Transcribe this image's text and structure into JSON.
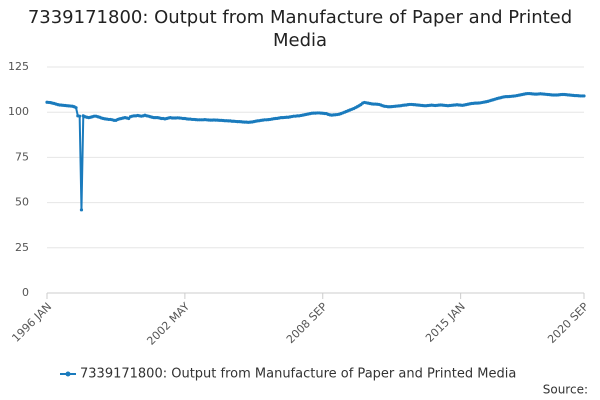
{
  "chart_data": {
    "type": "line",
    "title": "7339171800: Output from Manufacture of Paper and Printed Media",
    "source": "Source:",
    "categories": [
      "1996 JAN",
      null,
      null,
      null,
      null,
      null,
      null,
      null,
      null,
      null,
      null,
      null,
      null,
      null,
      null,
      null,
      null,
      null,
      null,
      null,
      null,
      null,
      null,
      null,
      null,
      null,
      null,
      null,
      null,
      null,
      null,
      null,
      null,
      null,
      null,
      null,
      null,
      null,
      null,
      null,
      null,
      null,
      null,
      null,
      null,
      null,
      null,
      null,
      null,
      null,
      null,
      null,
      null,
      null,
      null,
      null,
      null,
      null,
      null,
      null,
      null,
      null,
      null,
      null,
      null,
      null,
      null,
      null,
      null,
      null,
      null,
      null,
      null,
      null,
      null,
      null,
      "2002 MAY",
      null,
      null,
      null,
      null,
      null,
      null,
      null,
      null,
      null,
      null,
      null,
      null,
      null,
      null,
      null,
      null,
      null,
      null,
      null,
      null,
      null,
      null,
      null,
      null,
      null,
      null,
      null,
      null,
      null,
      null,
      null,
      null,
      null,
      null,
      null,
      null,
      null,
      null,
      null,
      null,
      null,
      null,
      null,
      null,
      null,
      null,
      null,
      null,
      null,
      null,
      null,
      null,
      null,
      null,
      null,
      null,
      null,
      null,
      null,
      null,
      null,
      null,
      null,
      null,
      null,
      null,
      null,
      null,
      null,
      null,
      null,
      null,
      null,
      null,
      null,
      "2008 SEP",
      null,
      null,
      null,
      null,
      null,
      null,
      null,
      null,
      null,
      null,
      null,
      null,
      null,
      null,
      null,
      null,
      null,
      null,
      null,
      null,
      null,
      null,
      null,
      null,
      null,
      null,
      null,
      null,
      null,
      null,
      null,
      null,
      null,
      null,
      null,
      null,
      null,
      null,
      null,
      null,
      null,
      null,
      null,
      null,
      null,
      null,
      null,
      null,
      null,
      null,
      null,
      null,
      null,
      null,
      null,
      null,
      null,
      null,
      null,
      null,
      null,
      null,
      null,
      null,
      null,
      null,
      null,
      null,
      null,
      null,
      null,
      null,
      null,
      null,
      null,
      "2015 JAN",
      null,
      null,
      null,
      null,
      null,
      null,
      null,
      null,
      null,
      null,
      null,
      null,
      null,
      null,
      null,
      null,
      null,
      null,
      null,
      null,
      null,
      null,
      null,
      null,
      null,
      null,
      null,
      null,
      null,
      null,
      null,
      null,
      null,
      null,
      null,
      null,
      null,
      null,
      null,
      null,
      null,
      null,
      null,
      null,
      null,
      null,
      null,
      null,
      null,
      null,
      null,
      null,
      null,
      null,
      null,
      null,
      null,
      null,
      null,
      null,
      null,
      null,
      null,
      null,
      null,
      null,
      null,
      "2020 SEP"
    ],
    "series": [
      {
        "name": "7339171800: Output from Manufacture of Paper and Printed Media",
        "color": "#1a7bbd",
        "values": [
          105.5,
          105.4,
          105.3,
          105,
          104.8,
          104.5,
          104.2,
          104,
          103.9,
          103.8,
          103.7,
          103.6,
          103.5,
          103.4,
          103.3,
          103,
          102.5,
          98,
          97.8,
          46,
          98,
          97.5,
          97.2,
          97,
          97.2,
          97.5,
          97.8,
          97.8,
          97.5,
          97.2,
          96.8,
          96.5,
          96.3,
          96.2,
          96,
          96,
          95.8,
          95.5,
          95.5,
          96,
          96.3,
          96.5,
          96.8,
          97,
          96.8,
          96.5,
          97.5,
          97.8,
          98,
          98,
          98.2,
          98,
          97.8,
          98,
          98.3,
          98,
          97.8,
          97.5,
          97.2,
          97,
          97,
          97,
          96.8,
          96.5,
          96.5,
          96.3,
          96.5,
          96.8,
          97,
          96.8,
          96.8,
          96.8,
          96.9,
          96.8,
          96.7,
          96.5,
          96.5,
          96.3,
          96.2,
          96.2,
          96,
          96,
          95.9,
          95.8,
          95.8,
          95.8,
          95.8,
          95.9,
          95.8,
          95.7,
          95.6,
          95.6,
          95.7,
          95.6,
          95.6,
          95.5,
          95.5,
          95.4,
          95.3,
          95.3,
          95.2,
          95.2,
          95,
          95,
          94.9,
          94.8,
          94.8,
          94.7,
          94.6,
          94.5,
          94.5,
          94.4,
          94.5,
          94.6,
          94.8,
          95,
          95.2,
          95.3,
          95.5,
          95.6,
          95.8,
          95.8,
          95.9,
          96,
          96.2,
          96.4,
          96.5,
          96.6,
          96.8,
          97,
          97,
          97.1,
          97.2,
          97.2,
          97.4,
          97.6,
          97.8,
          97.8,
          98,
          98,
          98.2,
          98.4,
          98.6,
          98.8,
          99,
          99.2,
          99.4,
          99.5,
          99.5,
          99.6,
          99.6,
          99.5,
          99.4,
          99.3,
          99.2,
          98.8,
          98.5,
          98.4,
          98.5,
          98.6,
          98.7,
          98.9,
          99.2,
          99.6,
          100,
          100.4,
          100.8,
          101.2,
          101.6,
          102,
          102.5,
          103,
          103.6,
          104.2,
          105,
          105.4,
          105.2,
          105,
          104.8,
          104.6,
          104.5,
          104.5,
          104.4,
          104.3,
          104,
          103.6,
          103.3,
          103.2,
          103,
          103,
          103.1,
          103.2,
          103.3,
          103.4,
          103.5,
          103.6,
          103.8,
          103.9,
          104,
          104.2,
          104.3,
          104.3,
          104.2,
          104.1,
          104,
          103.9,
          103.8,
          103.7,
          103.6,
          103.6,
          103.7,
          103.8,
          103.9,
          103.8,
          103.7,
          103.8,
          103.9,
          104,
          103.9,
          103.8,
          103.7,
          103.6,
          103.7,
          103.8,
          103.9,
          104,
          104.1,
          104,
          103.9,
          103.8,
          104,
          104.2,
          104.4,
          104.6,
          104.8,
          104.9,
          105,
          105,
          105.1,
          105.2,
          105.4,
          105.6,
          105.8,
          106,
          106.3,
          106.6,
          106.9,
          107.2,
          107.5,
          107.8,
          108,
          108.3,
          108.5,
          108.6,
          108.6,
          108.7,
          108.8,
          108.9,
          109,
          109.2,
          109.4,
          109.6,
          109.8,
          110,
          110.2,
          110.3,
          110.3,
          110.2,
          110.1,
          110,
          110,
          110.1,
          110.2,
          110.1,
          110,
          109.9,
          109.8,
          109.7,
          109.6,
          109.5,
          109.5,
          109.5,
          109.6,
          109.7,
          109.8,
          109.8,
          109.7,
          109.6,
          109.5,
          109.4,
          109.3,
          109.2,
          109.2,
          109.1,
          109,
          109,
          109
        ]
      }
    ],
    "ylim": [
      0,
      125
    ],
    "yticks": [
      0,
      25,
      50,
      75,
      100,
      125
    ],
    "grid": true,
    "legend": "bottom"
  }
}
